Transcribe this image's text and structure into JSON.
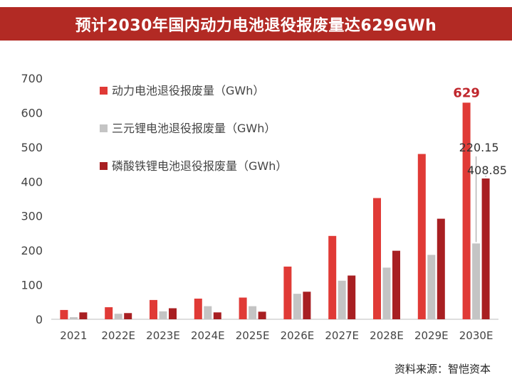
{
  "title": "预计2030年国内动力电池退役报废量达629GWh",
  "source": "资料来源：智恺资本",
  "colors": {
    "title_bg": "#b22a24",
    "series": [
      "#e03a36",
      "#c4c4c4",
      "#a81f22"
    ],
    "axis_text": "#444444",
    "highlight_label": "#c0272d"
  },
  "chart_data": {
    "type": "bar",
    "categories": [
      "2021",
      "2022E",
      "2023E",
      "2024E",
      "2025E",
      "2026E",
      "2027E",
      "2028E",
      "2029E",
      "2030E"
    ],
    "series": [
      {
        "name": "动力电池退役报废量（GWh）",
        "values": [
          27,
          35,
          56,
          60,
          63,
          153,
          242,
          352,
          480,
          629
        ]
      },
      {
        "name": "三元锂电池退役报废量（GWh）",
        "values": [
          6,
          16,
          23,
          38,
          38,
          74,
          112,
          150,
          187,
          220.15
        ]
      },
      {
        "name": "磷酸铁锂电池退役报废量（GWh）",
        "values": [
          20,
          18,
          32,
          20,
          22,
          80,
          127,
          199,
          292,
          408.85
        ]
      }
    ],
    "ylim": [
      0,
      700
    ],
    "yticks": [
      0,
      100,
      200,
      300,
      400,
      500,
      600,
      700
    ],
    "data_labels": [
      "629",
      "220.15",
      "408.85"
    ],
    "legend": "top-left",
    "grid": false
  }
}
